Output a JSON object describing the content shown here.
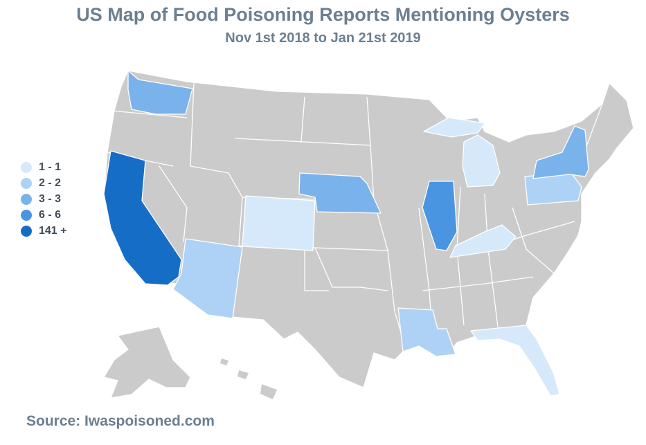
{
  "title": "US Map of Food Poisoning Reports Mentioning Oysters",
  "subtitle": "Nov 1st 2018 to Jan 21st 2019",
  "source": "Source: Iwaspoisoned.com",
  "colors": {
    "none": "#cbcbcb",
    "bin_1_1": "#d6e9fb",
    "bin_2_2": "#aed2f5",
    "bin_3_3": "#7ab3ec",
    "bin_6_6": "#4a95e2",
    "bin_141_plus": "#156dc6"
  },
  "legend": [
    {
      "label": "1 - 1",
      "color": "#d6e9fb"
    },
    {
      "label": "2 - 2",
      "color": "#aed2f5"
    },
    {
      "label": "3 - 3",
      "color": "#7ab3ec"
    },
    {
      "label": "6 - 6",
      "color": "#4a95e2"
    },
    {
      "label": "141 +",
      "color": "#156dc6"
    }
  ],
  "state_bins": {
    "CA": "141 +",
    "IL": "6 - 6",
    "WA": "3 - 3",
    "NE": "3 - 3",
    "NY": "3 - 3",
    "AZ": "2 - 2",
    "LA": "2 - 2",
    "PA": "2 - 2",
    "CO": "1 - 1",
    "MI": "1 - 1",
    "KY": "1 - 1",
    "FL": "1 - 1"
  }
}
